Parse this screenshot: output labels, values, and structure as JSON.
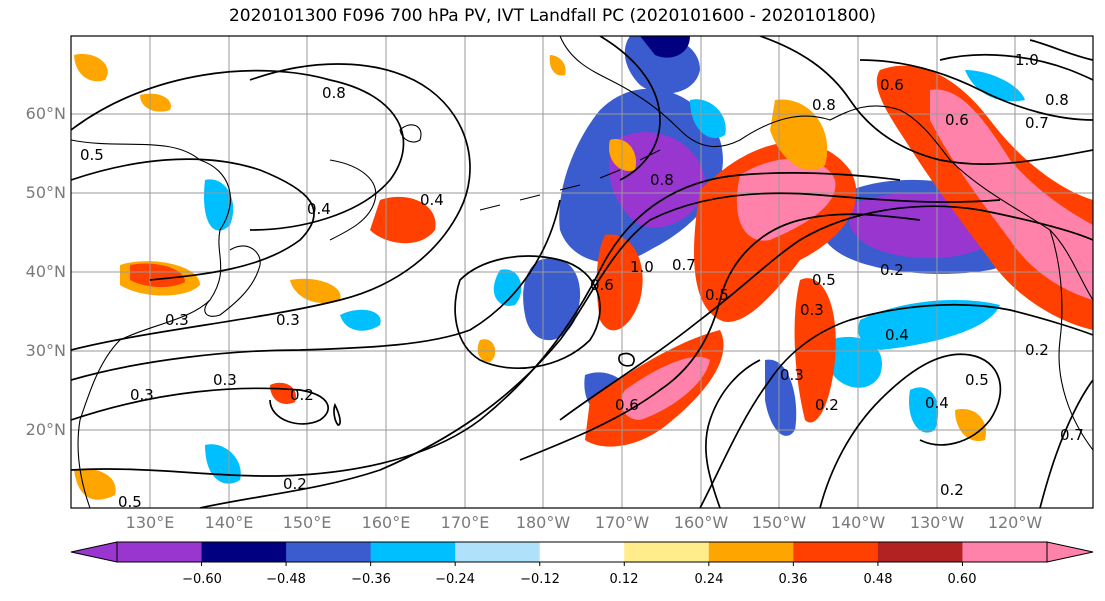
{
  "title": "2020101300 F096 700 hPa PV, IVT Landfall PC (2020101600 - 2020101800)",
  "map": {
    "lat_labels": [
      "60°N",
      "50°N",
      "40°N",
      "30°N",
      "20°N"
    ],
    "lon_labels": [
      "130°E",
      "140°E",
      "150°E",
      "160°E",
      "170°E",
      "180°W",
      "170°W",
      "160°W",
      "150°W",
      "140°W",
      "130°W",
      "120°W"
    ],
    "contour_labels": [
      "0.8",
      "0.4",
      "0.4",
      "0.3",
      "0.3",
      "0.3",
      "0.2",
      "0.2",
      "0.5",
      "0.6",
      "1.0",
      "0.7",
      "0.5",
      "0.8",
      "0.3",
      "0.5",
      "0.4",
      "0.3",
      "0.2",
      "0.2",
      "0.5",
      "0.4",
      "0.2",
      "0.7",
      "0.6",
      "1.0",
      "0.8",
      "0.7",
      "0.6",
      "0.5",
      "0.8",
      "0.6",
      "0.3",
      "0.2"
    ],
    "colors": {
      "ocean": "#ffffff",
      "grid": "#9a9a9a",
      "coast": "#000000",
      "contour": "#000000"
    }
  },
  "colorbar": {
    "colors": [
      "#9a36d0",
      "#000080",
      "#3a5ccf",
      "#00bfff",
      "#afe1fa",
      "#ffffff",
      "#ffec8a",
      "#ffa500",
      "#ff4000",
      "#b22222",
      "#ff82ab"
    ],
    "ticks": [
      "−0.60",
      "−0.48",
      "−0.36",
      "−0.24",
      "−0.12",
      "0.12",
      "0.24",
      "0.36",
      "0.48",
      "0.60"
    ]
  }
}
